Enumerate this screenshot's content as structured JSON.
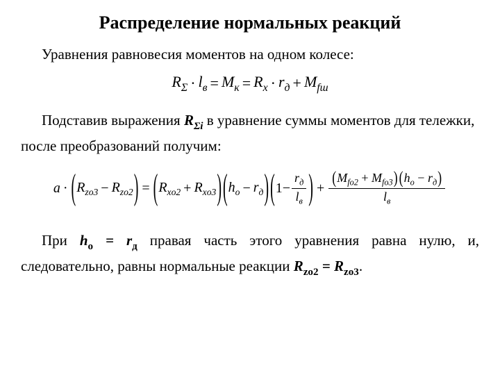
{
  "title": "Распределение нормальных реакций",
  "lead": "Уравнения равновесия моментов на одном колесе:",
  "eq1": {
    "R_sigma": "R",
    "R_sigma_sub": "Σ",
    "l_v": "l",
    "l_v_sub": "в",
    "M_k": "M",
    "M_k_sub": "к",
    "R_x": "R",
    "R_x_sub": "x",
    "r_d": "r",
    "r_d_sub": "д",
    "M_fsh": "M",
    "M_fsh_sub": "fш",
    "dot": "·",
    "eq": "=",
    "plus": "+"
  },
  "body1_a": "Подставив выражения ",
  "body1_R": "R",
  "body1_Rsub": "Σi",
  "body1_b": " в уравнение суммы моментов для тележки, после преобразований получим:",
  "eq2": {
    "a": "a",
    "dot": "·",
    "Rzo3": "R",
    "Rzo3_sub": "zо3",
    "Rzo2": "R",
    "Rzo2_sub": "zо2",
    "minus": "−",
    "eq": "=",
    "plus": "+",
    "Rxo2": "R",
    "Rxo2_sub": "xо2",
    "Rxo3": "R",
    "Rxo3_sub": "xо3",
    "h_o": "h",
    "h_o_sub": "о",
    "r_d": "r",
    "r_d_sub": "д",
    "one": "1",
    "l_v": "l",
    "l_v_sub": "в",
    "Mfo2": "M",
    "Mfo2_sub": "fо2",
    "Mfo3": "M",
    "Mfo3_sub": "fо3"
  },
  "body2_a": "При ",
  "body2_ho": "h",
  "body2_ho_sub": "о",
  "body2_eq": " = ",
  "body2_rd": "r",
  "body2_rd_sub": "д",
  "body2_b": " правая часть этого уравнения равна нулю, и, следовательно, равны нормальные реакции ",
  "body2_R1": "R",
  "body2_R1_sub": "zо2",
  "body2_eq2": " = ",
  "body2_R2": "R",
  "body2_R2_sub": "zо3",
  "body2_dot": "."
}
